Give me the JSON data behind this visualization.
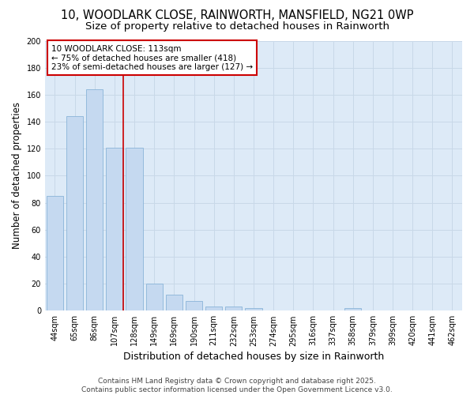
{
  "title": "10, WOODLARK CLOSE, RAINWORTH, MANSFIELD, NG21 0WP",
  "subtitle": "Size of property relative to detached houses in Rainworth",
  "xlabel": "Distribution of detached houses by size in Rainworth",
  "ylabel": "Number of detached properties",
  "categories": [
    "44sqm",
    "65sqm",
    "86sqm",
    "107sqm",
    "128sqm",
    "149sqm",
    "169sqm",
    "190sqm",
    "211sqm",
    "232sqm",
    "253sqm",
    "274sqm",
    "295sqm",
    "316sqm",
    "337sqm",
    "358sqm",
    "379sqm",
    "399sqm",
    "420sqm",
    "441sqm",
    "462sqm"
  ],
  "values": [
    85,
    144,
    164,
    121,
    121,
    20,
    12,
    7,
    3,
    3,
    2,
    0,
    0,
    0,
    0,
    2,
    0,
    0,
    0,
    0,
    0
  ],
  "bar_color": "#c5d9f0",
  "bar_edge_color": "#8ab4d8",
  "vline_x": 3.43,
  "vline_color": "#cc0000",
  "annotation_line1": "10 WOODLARK CLOSE: 113sqm",
  "annotation_line2": "← 75% of detached houses are smaller (418)",
  "annotation_line3": "23% of semi-detached houses are larger (127) →",
  "annotation_box_color": "#ffffff",
  "annotation_box_edge_color": "#cc0000",
  "ylim": [
    0,
    200
  ],
  "yticks": [
    0,
    20,
    40,
    60,
    80,
    100,
    120,
    140,
    160,
    180,
    200
  ],
  "grid_color": "#c8d8e8",
  "plot_bg_color": "#ddeaf7",
  "fig_bg_color": "#ffffff",
  "footer_text": "Contains HM Land Registry data © Crown copyright and database right 2025.\nContains public sector information licensed under the Open Government Licence v3.0.",
  "title_fontsize": 10.5,
  "subtitle_fontsize": 9.5,
  "axis_label_fontsize": 8.5,
  "tick_fontsize": 7,
  "annotation_fontsize": 7.5,
  "footer_fontsize": 6.5
}
